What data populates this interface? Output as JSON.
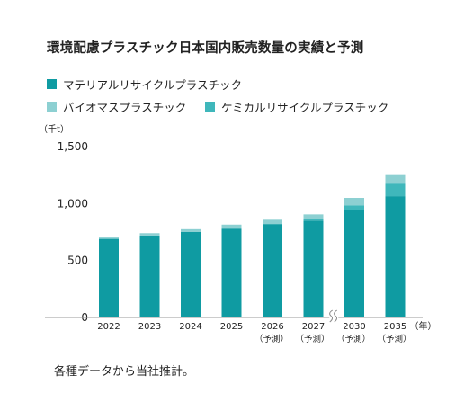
{
  "title": "環境配慮プラスチック日本国内販売数量の実績と予測",
  "footnote": "各種データから当社推計。",
  "chart_data": {
    "type": "bar",
    "stacked": true,
    "unit_label": "（千t）",
    "year_unit": "（年）",
    "categories": [
      "2022",
      "2023",
      "2024",
      "2025",
      "2026",
      "2027",
      "2030",
      "2035"
    ],
    "forecast_marks": [
      "",
      "",
      "",
      "",
      "（予測）",
      "（予測）",
      "（予測）",
      "（予測）"
    ],
    "axis_break_between": [
      "2027",
      "2030"
    ],
    "series": [
      {
        "name": "マテリアルリサイクルプラスチック",
        "color": "#0f9ba2",
        "values": [
          690,
          720,
          750,
          780,
          820,
          850,
          945,
          1065
        ]
      },
      {
        "name": "ケミカルリサイクルプラスチック",
        "color": "#3fb7bb",
        "values": [
          0,
          0,
          0,
          0,
          0,
          15,
          40,
          110
        ]
      },
      {
        "name": "バイオマスプラスチック",
        "color": "#8dd0d2",
        "values": [
          12,
          20,
          25,
          35,
          38,
          40,
          65,
          75
        ]
      }
    ],
    "yticks": [
      0,
      500,
      1000,
      1500
    ],
    "ytick_labels": [
      "0",
      "500",
      "1,000",
      "1,500"
    ],
    "ylim": [
      0,
      1500
    ],
    "grid": false,
    "legend_position": "top"
  }
}
